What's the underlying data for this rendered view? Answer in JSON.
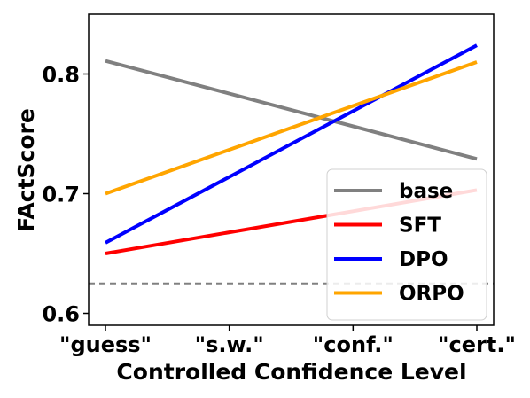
{
  "chart_data": {
    "type": "line",
    "xlabel": "Controlled Confidence Level",
    "ylabel": "FActScore",
    "categories": [
      "\"guess\"",
      "\"s.w.\"",
      "\"conf.\"",
      "\"cert.\""
    ],
    "ylim": [
      0.59,
      0.85
    ],
    "yticks": [
      0.6,
      0.7,
      0.8
    ],
    "ytick_labels": [
      "0.6",
      "0.7",
      "0.8"
    ],
    "grid": false,
    "legend_position": "lower-right",
    "reference_line": {
      "y": 0.625,
      "color": "#808080",
      "style": "dashed"
    },
    "series": [
      {
        "name": "base",
        "color": "#808080",
        "start": 0.811,
        "end": 0.729
      },
      {
        "name": "SFT",
        "color": "#ff0000",
        "start": 0.65,
        "end": 0.703
      },
      {
        "name": "DPO",
        "color": "#0000ff",
        "start": 0.659,
        "end": 0.824
      },
      {
        "name": "ORPO",
        "color": "#ffa500",
        "start": 0.7,
        "end": 0.81
      }
    ]
  }
}
